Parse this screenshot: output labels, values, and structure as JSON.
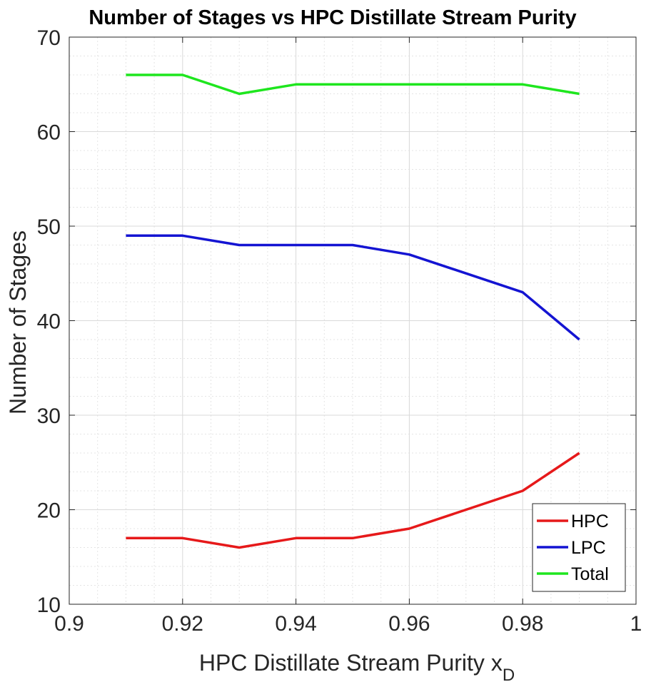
{
  "chart_data": {
    "type": "line",
    "title": "Number of Stages vs HPC Distillate Stream Purity",
    "xlabel": "HPC Distillate Stream Purity x",
    "xlabel_subscript": "D",
    "ylabel": "Number of Stages",
    "xlim": [
      0.9,
      1.0
    ],
    "ylim": [
      10,
      70
    ],
    "xticks": [
      0.9,
      0.92,
      0.94,
      0.96,
      0.98,
      1.0
    ],
    "xtick_labels": [
      "0.9",
      "0.92",
      "0.94",
      "0.96",
      "0.98",
      "1"
    ],
    "yticks": [
      10,
      20,
      30,
      40,
      50,
      60,
      70
    ],
    "ytick_labels": [
      "10",
      "20",
      "30",
      "40",
      "50",
      "60",
      "70"
    ],
    "grid": true,
    "minor_grid": true,
    "legend_position": "bottom-right",
    "x": [
      0.91,
      0.92,
      0.93,
      0.94,
      0.95,
      0.96,
      0.97,
      0.98,
      0.99
    ],
    "series": [
      {
        "name": "HPC",
        "color": "#e6191a",
        "values": [
          17,
          17,
          16,
          17,
          17,
          18,
          20,
          22,
          26
        ]
      },
      {
        "name": "LPC",
        "color": "#1414d2",
        "values": [
          49,
          49,
          48,
          48,
          48,
          47,
          45,
          43,
          38
        ]
      },
      {
        "name": "Total",
        "color": "#1ee61e",
        "values": [
          66,
          66,
          64,
          65,
          65,
          65,
          65,
          65,
          64
        ]
      }
    ]
  }
}
